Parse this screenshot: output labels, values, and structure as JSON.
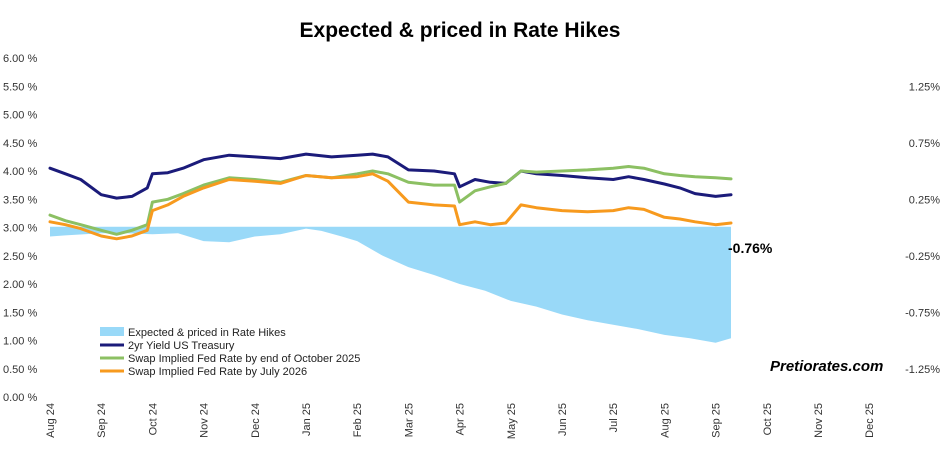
{
  "chart_data": {
    "type": "line",
    "title": "Expected & priced in Rate Hikes",
    "brand": "Pretiorates.com",
    "annotation": "-0.76%",
    "left_axis": {
      "min": 0.0,
      "max": 6.0,
      "ticks": [
        "0.00 %",
        "0.50 %",
        "1.00 %",
        "1.50 %",
        "2.00 %",
        "2.50 %",
        "3.00 %",
        "3.50 %",
        "4.00 %",
        "4.50 %",
        "5.00 %",
        "5.50 %",
        "6.00 %"
      ]
    },
    "right_axis": {
      "min": -1.5,
      "max": 1.5,
      "ticks": [
        "-1.25%",
        "-0.75%",
        "-0.25%",
        "0.25%",
        "0.75%",
        "1.25%"
      ]
    },
    "x_axis": {
      "ticks": [
        "Aug 24",
        "Sep 24",
        "Oct 24",
        "Nov 24",
        "Dec 24",
        "Jan 25",
        "Feb 25",
        "Mar 25",
        "Apr 25",
        "May 25",
        "Jun 25",
        "Jul 25",
        "Aug 25",
        "Sep 25",
        "Oct 25",
        "Nov 25",
        "Dec 25"
      ]
    },
    "series": [
      {
        "name": "Expected & priced in Rate Hikes",
        "kind": "area",
        "axis": "right",
        "color": "#99d9f8",
        "points": [
          [
            0.0,
            -0.08
          ],
          [
            0.3,
            -0.07
          ],
          [
            1.0,
            -0.05
          ],
          [
            1.5,
            -0.05
          ],
          [
            2.0,
            -0.06
          ],
          [
            2.5,
            -0.05
          ],
          [
            3.0,
            -0.12
          ],
          [
            3.5,
            -0.13
          ],
          [
            4.0,
            -0.08
          ],
          [
            4.5,
            -0.06
          ],
          [
            5.0,
            -0.01
          ],
          [
            5.3,
            -0.03
          ],
          [
            5.7,
            -0.08
          ],
          [
            6.0,
            -0.12
          ],
          [
            6.5,
            -0.25
          ],
          [
            7.0,
            -0.35
          ],
          [
            7.5,
            -0.42
          ],
          [
            8.0,
            -0.5
          ],
          [
            8.5,
            -0.56
          ],
          [
            9.0,
            -0.65
          ],
          [
            9.5,
            -0.7
          ],
          [
            10.0,
            -0.77
          ],
          [
            10.5,
            -0.82
          ],
          [
            11.0,
            -0.86
          ],
          [
            11.5,
            -0.9
          ],
          [
            12.0,
            -0.95
          ],
          [
            12.5,
            -0.98
          ],
          [
            13.0,
            -1.02
          ],
          [
            13.3,
            -0.98
          ]
        ]
      },
      {
        "name": "2yr Yield US Treasury",
        "kind": "line",
        "axis": "left",
        "color": "#1b1b7a",
        "points": [
          [
            0.0,
            4.05
          ],
          [
            0.3,
            3.95
          ],
          [
            0.6,
            3.85
          ],
          [
            1.0,
            3.58
          ],
          [
            1.3,
            3.52
          ],
          [
            1.6,
            3.55
          ],
          [
            1.9,
            3.7
          ],
          [
            2.0,
            3.95
          ],
          [
            2.3,
            3.97
          ],
          [
            2.6,
            4.05
          ],
          [
            3.0,
            4.2
          ],
          [
            3.5,
            4.28
          ],
          [
            4.0,
            4.25
          ],
          [
            4.5,
            4.22
          ],
          [
            5.0,
            4.3
          ],
          [
            5.5,
            4.25
          ],
          [
            6.0,
            4.28
          ],
          [
            6.3,
            4.3
          ],
          [
            6.6,
            4.25
          ],
          [
            7.0,
            4.02
          ],
          [
            7.5,
            4.0
          ],
          [
            7.9,
            3.95
          ],
          [
            8.0,
            3.72
          ],
          [
            8.3,
            3.85
          ],
          [
            8.6,
            3.8
          ],
          [
            8.9,
            3.78
          ],
          [
            9.2,
            4.0
          ],
          [
            9.5,
            3.95
          ],
          [
            10.0,
            3.92
          ],
          [
            10.5,
            3.88
          ],
          [
            11.0,
            3.85
          ],
          [
            11.3,
            3.9
          ],
          [
            11.6,
            3.85
          ],
          [
            12.0,
            3.77
          ],
          [
            12.3,
            3.7
          ],
          [
            12.6,
            3.6
          ],
          [
            13.0,
            3.55
          ],
          [
            13.3,
            3.58
          ]
        ]
      },
      {
        "name": "Swap Implied Fed Rate by end of October 2025",
        "kind": "line",
        "axis": "left",
        "color": "#8cc063",
        "points": [
          [
            0.0,
            3.22
          ],
          [
            0.3,
            3.12
          ],
          [
            0.6,
            3.05
          ],
          [
            1.0,
            2.95
          ],
          [
            1.3,
            2.88
          ],
          [
            1.6,
            2.95
          ],
          [
            1.9,
            3.05
          ],
          [
            2.0,
            3.45
          ],
          [
            2.3,
            3.5
          ],
          [
            2.6,
            3.6
          ],
          [
            3.0,
            3.75
          ],
          [
            3.5,
            3.88
          ],
          [
            4.0,
            3.85
          ],
          [
            4.5,
            3.8
          ],
          [
            5.0,
            3.92
          ],
          [
            5.5,
            3.88
          ],
          [
            6.0,
            3.95
          ],
          [
            6.3,
            4.0
          ],
          [
            6.6,
            3.95
          ],
          [
            7.0,
            3.8
          ],
          [
            7.5,
            3.75
          ],
          [
            7.9,
            3.75
          ],
          [
            8.0,
            3.45
          ],
          [
            8.3,
            3.65
          ],
          [
            8.6,
            3.72
          ],
          [
            8.9,
            3.78
          ],
          [
            9.2,
            4.0
          ],
          [
            9.5,
            3.98
          ],
          [
            10.0,
            4.0
          ],
          [
            10.5,
            4.02
          ],
          [
            11.0,
            4.05
          ],
          [
            11.3,
            4.08
          ],
          [
            11.6,
            4.05
          ],
          [
            12.0,
            3.95
          ],
          [
            12.3,
            3.92
          ],
          [
            12.6,
            3.9
          ],
          [
            13.0,
            3.88
          ],
          [
            13.3,
            3.86
          ]
        ]
      },
      {
        "name": "Swap Implied Fed Rate by July 2026",
        "kind": "line",
        "axis": "left",
        "color": "#f79a1e",
        "points": [
          [
            0.0,
            3.1
          ],
          [
            0.3,
            3.05
          ],
          [
            0.6,
            2.98
          ],
          [
            1.0,
            2.85
          ],
          [
            1.3,
            2.8
          ],
          [
            1.6,
            2.85
          ],
          [
            1.9,
            2.95
          ],
          [
            2.0,
            3.3
          ],
          [
            2.3,
            3.4
          ],
          [
            2.6,
            3.55
          ],
          [
            3.0,
            3.7
          ],
          [
            3.5,
            3.85
          ],
          [
            4.0,
            3.82
          ],
          [
            4.5,
            3.78
          ],
          [
            5.0,
            3.92
          ],
          [
            5.5,
            3.88
          ],
          [
            6.0,
            3.9
          ],
          [
            6.3,
            3.95
          ],
          [
            6.6,
            3.82
          ],
          [
            7.0,
            3.45
          ],
          [
            7.5,
            3.4
          ],
          [
            7.9,
            3.38
          ],
          [
            8.0,
            3.05
          ],
          [
            8.3,
            3.1
          ],
          [
            8.6,
            3.05
          ],
          [
            8.9,
            3.08
          ],
          [
            9.2,
            3.4
          ],
          [
            9.5,
            3.35
          ],
          [
            10.0,
            3.3
          ],
          [
            10.5,
            3.28
          ],
          [
            11.0,
            3.3
          ],
          [
            11.3,
            3.35
          ],
          [
            11.6,
            3.32
          ],
          [
            12.0,
            3.18
          ],
          [
            12.3,
            3.15
          ],
          [
            12.6,
            3.1
          ],
          [
            13.0,
            3.05
          ],
          [
            13.3,
            3.08
          ]
        ]
      }
    ],
    "legend": [
      {
        "label": "Expected & priced in Rate Hikes",
        "color": "#99d9f8",
        "shape": "bar"
      },
      {
        "label": "2yr Yield US Treasury",
        "color": "#1b1b7a",
        "shape": "line"
      },
      {
        "label": "Swap Implied Fed Rate by end of October 2025",
        "color": "#8cc063",
        "shape": "line"
      },
      {
        "label": "Swap Implied Fed Rate by July 2026",
        "color": "#f79a1e",
        "shape": "line"
      }
    ]
  }
}
